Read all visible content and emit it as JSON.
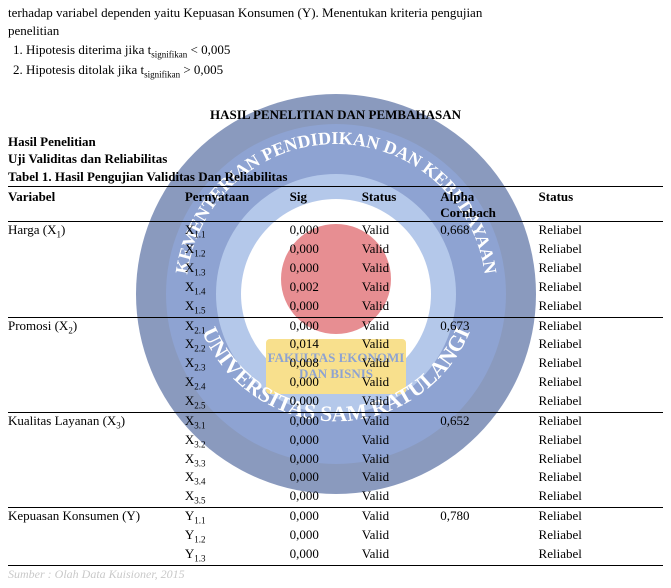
{
  "intro": {
    "line1": "terhadap variabel dependen yaitu Kepuasan Konsumen (Y). Menentukan kriteria pengujian",
    "line2": "penelitian",
    "item1_pre": "Hipotesis diterima jika t",
    "item1_sub": "signifikan",
    "item1_post": " < 0,005",
    "item2_pre": "Hipotesis ditolak jika t",
    "item2_sub": "signifikan",
    "item2_post": " > 0,005"
  },
  "headings": {
    "section": "HASIL PENELITIAN DAN PEMBAHASAN",
    "hasil": "Hasil Penelitian",
    "uji": "Uji Validitas dan Reliabilitas",
    "tabel": "Tabel 1. Hasil Pengujian Validitas Dan Reliabilitas"
  },
  "table": {
    "headers": {
      "variabel": "Variabel",
      "pernyataan": "Pernyataan",
      "sig": "Sig",
      "status1": "Status",
      "alpha_line1": "Alpha",
      "alpha_line2": "Cornbach",
      "status2": "Status"
    },
    "groups": [
      {
        "variabel_pre": "Harga (X",
        "variabel_sub": "1",
        "variabel_post": ")",
        "alpha": "0,668",
        "rows": [
          {
            "p_pre": "X",
            "p_sub": "1.1",
            "sig": "0,000",
            "valid": "Valid",
            "rel": "Reliabel"
          },
          {
            "p_pre": "X",
            "p_sub": "1.2",
            "sig": "0,000",
            "valid": "Valid",
            "rel": "Reliabel"
          },
          {
            "p_pre": "X",
            "p_sub": "1.3",
            "sig": "0,000",
            "valid": "Valid",
            "rel": "Reliabel"
          },
          {
            "p_pre": "X",
            "p_sub": "1.4",
            "sig": "0,002",
            "valid": "Valid",
            "rel": "Reliabel"
          },
          {
            "p_pre": "X",
            "p_sub": "1.5",
            "sig": "0,000",
            "valid": "Valid",
            "rel": "Reliabel"
          }
        ]
      },
      {
        "variabel_pre": "Promosi (X",
        "variabel_sub": "2",
        "variabel_post": ")",
        "alpha": "0,673",
        "rows": [
          {
            "p_pre": "X",
            "p_sub": "2.1",
            "sig": "0,000",
            "valid": "Valid",
            "rel": "Reliabel"
          },
          {
            "p_pre": "X",
            "p_sub": "2.2",
            "sig": "0,014",
            "valid": "Valid",
            "rel": "Reliabel"
          },
          {
            "p_pre": "X",
            "p_sub": "2.3",
            "sig": "0,008",
            "valid": "Valid",
            "rel": "Reliabel"
          },
          {
            "p_pre": "X",
            "p_sub": "2.4",
            "sig": "0,000",
            "valid": "Valid",
            "rel": "Reliabel"
          },
          {
            "p_pre": "X",
            "p_sub": "2.5",
            "sig": "0,000",
            "valid": "Valid",
            "rel": "Reliabel"
          }
        ]
      },
      {
        "variabel_pre": "Kualitas Layanan (X",
        "variabel_sub": "3",
        "variabel_post": ")",
        "alpha": "0,652",
        "rows": [
          {
            "p_pre": "X",
            "p_sub": "3.1",
            "sig": "0,000",
            "valid": "Valid",
            "rel": "Reliabel"
          },
          {
            "p_pre": "X",
            "p_sub": "3.2",
            "sig": "0,000",
            "valid": "Valid",
            "rel": "Reliabel"
          },
          {
            "p_pre": "X",
            "p_sub": "3.3",
            "sig": "0,000",
            "valid": "Valid",
            "rel": "Reliabel"
          },
          {
            "p_pre": "X",
            "p_sub": "3.4",
            "sig": "0,000",
            "valid": "Valid",
            "rel": "Reliabel"
          },
          {
            "p_pre": "X",
            "p_sub": "3.5",
            "sig": "0,000",
            "valid": "Valid",
            "rel": "Reliabel"
          }
        ]
      },
      {
        "variabel_pre": "Kepuasan Konsumen (Y)",
        "variabel_sub": "",
        "variabel_post": "",
        "alpha": "0,780",
        "rows": [
          {
            "p_pre": "Y",
            "p_sub": "1.1",
            "sig": "0,000",
            "valid": "Valid",
            "rel": "Reliabel"
          },
          {
            "p_pre": "Y",
            "p_sub": "1.2",
            "sig": "0,000",
            "valid": "Valid",
            "rel": "Reliabel"
          },
          {
            "p_pre": "Y",
            "p_sub": "1.3",
            "sig": "0,000",
            "valid": "Valid",
            "rel": "Reliabel"
          }
        ]
      }
    ]
  },
  "footnote": "Sumber : Olah Data Kuisioner, 2015",
  "bg": {
    "outer_blue": "#18377f",
    "mid_blue": "#1f4aa6",
    "light_blue": "#6c92d6",
    "white": "#ffffff",
    "red": "#d02027",
    "yellow": "#f3c21e",
    "arc_text": "KEMENTERIAN PENDIDIKAN DAN KEBUDAYAAN",
    "uni_text": "UNIVERSITAS SAM RATULANGI",
    "fac1": "FAKULTAS EKONOMI",
    "fac2": "DAN BISNIS"
  }
}
